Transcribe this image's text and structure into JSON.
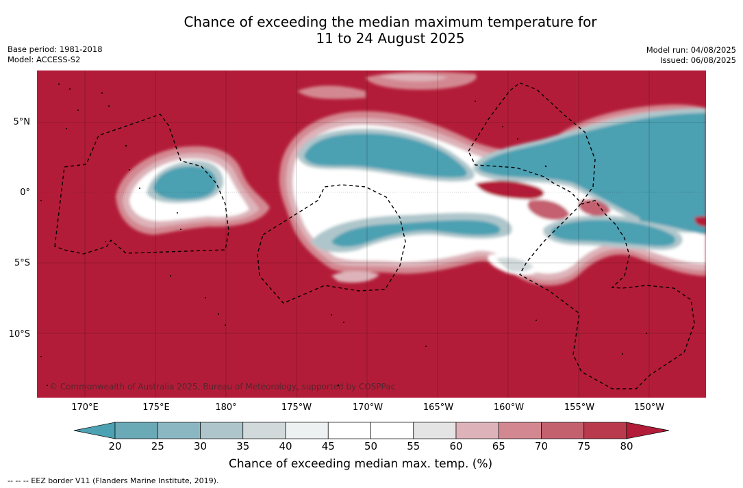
{
  "title_line1": "Chance of exceeding the median maximum temperature for",
  "title_line2": "11 to 24 August 2025",
  "base_period": "Base period: 1981-2018",
  "model": "Model: ACCESS-S2",
  "model_run": "Model run: 04/08/2025",
  "issued": "Issued: 06/08/2025",
  "copyright": "© Commonwealth of Australia 2025, Bureau of Meteorology, supported by COSPPac",
  "lat_labels": [
    "5°N",
    "0°",
    "5°S",
    "10°S"
  ],
  "lon_labels": [
    "170°E",
    "175°E",
    "180°",
    "175°W",
    "170°W",
    "165°W",
    "160°W",
    "155°W",
    "150°W"
  ],
  "colorbar": {
    "ticks": [
      "20",
      "25",
      "30",
      "35",
      "40",
      "45",
      "50",
      "55",
      "60",
      "65",
      "70",
      "75",
      "80"
    ],
    "colors": [
      "#4ca1b2",
      "#6aa9b6",
      "#8bb7c2",
      "#aec6cb",
      "#d1d9da",
      "#eef1f2",
      "#ffffff",
      "#ffffff",
      "#e5e4e4",
      "#ddb3b9",
      "#d38891",
      "#c4616f",
      "#b93a4c",
      "#b31c38"
    ],
    "label": "Chance of exceeding median max. temp. (%)"
  },
  "footnote": "--  --  -- EEZ border V11 (Flanders Marine Institute, 2019).",
  "colors": {
    "high": "#b31c38",
    "low": "#4ba0b2"
  }
}
